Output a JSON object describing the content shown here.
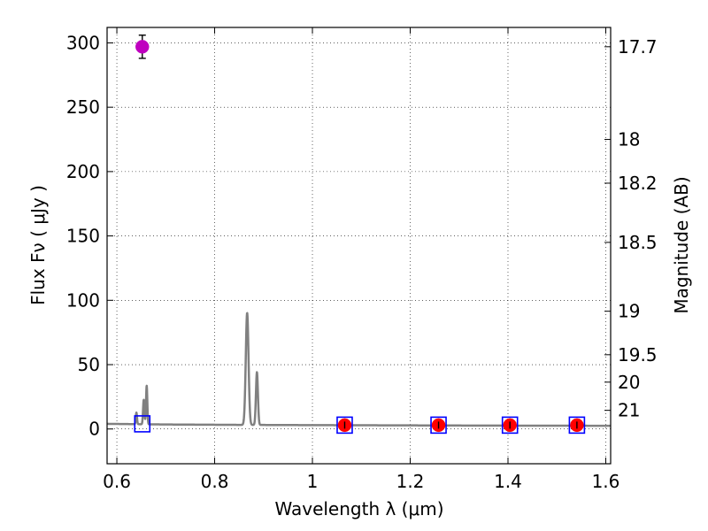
{
  "chart_data": {
    "type": "scatter",
    "xlabel": "Wavelength  λ (μm)",
    "ylabel": "Flux  Fν  ( μJy )",
    "ylabel_right": "Magnitude (AB)",
    "xlim": [
      0.58,
      1.61
    ],
    "ylim": [
      -27,
      312
    ],
    "grid": true,
    "x_ticks": [
      0.6,
      0.8,
      1.0,
      1.2,
      1.4,
      1.6
    ],
    "x_tick_labels": [
      "0.6",
      "0.8",
      "1",
      "1.2",
      "1.4",
      "1.6"
    ],
    "y_ticks": [
      0,
      50,
      100,
      150,
      200,
      250,
      300
    ],
    "y_tick_labels": [
      "0",
      "50",
      "100",
      "150",
      "200",
      "250",
      "300"
    ],
    "right_ticks": [
      {
        "flux": 297,
        "label": "17.7"
      },
      {
        "flux": 225,
        "label": "18"
      },
      {
        "flux": 191,
        "label": "18.2"
      },
      {
        "flux": 145,
        "label": "18.5"
      },
      {
        "flux": 91.5,
        "label": "19"
      },
      {
        "flux": 57.7,
        "label": "19.5"
      },
      {
        "flux": 36.4,
        "label": "20"
      },
      {
        "flux": 14.5,
        "label": "21"
      }
    ],
    "model_spectrum": {
      "name": "model",
      "color": "#808080",
      "baseline": [
        [
          0.58,
          4.0
        ],
        [
          0.7,
          3.5
        ],
        [
          0.85,
          3.2
        ],
        [
          1.0,
          3.0
        ],
        [
          1.2,
          2.8
        ],
        [
          1.4,
          2.6
        ],
        [
          1.61,
          2.5
        ]
      ],
      "lines": [
        {
          "center": 0.64,
          "height": 9,
          "width": 0.0012
        },
        {
          "center": 0.655,
          "height": 19,
          "width": 0.0014
        },
        {
          "center": 0.661,
          "height": 30,
          "width": 0.0013
        },
        {
          "center": 0.8665,
          "height": 87,
          "width": 0.0028
        },
        {
          "center": 0.8865,
          "height": 41,
          "width": 0.002
        }
      ]
    },
    "series": [
      {
        "name": "observed-large",
        "color": "#bf00bf",
        "x": [
          0.652
        ],
        "y": [
          297
        ],
        "err": [
          9
        ]
      },
      {
        "name": "observed",
        "color": "#ff0000",
        "x": [
          1.066,
          1.258,
          1.404,
          1.541
        ],
        "y": [
          3.0,
          3.0,
          3.0,
          3.0
        ],
        "err": [
          2.5,
          2.5,
          2.5,
          2.5
        ]
      },
      {
        "name": "model-bandpass",
        "color": "#0000ff",
        "marker": "square-open",
        "x": [
          0.652,
          1.066,
          1.258,
          1.404,
          1.541
        ],
        "y": [
          4.0,
          3.0,
          3.0,
          3.0,
          3.0
        ]
      }
    ]
  }
}
